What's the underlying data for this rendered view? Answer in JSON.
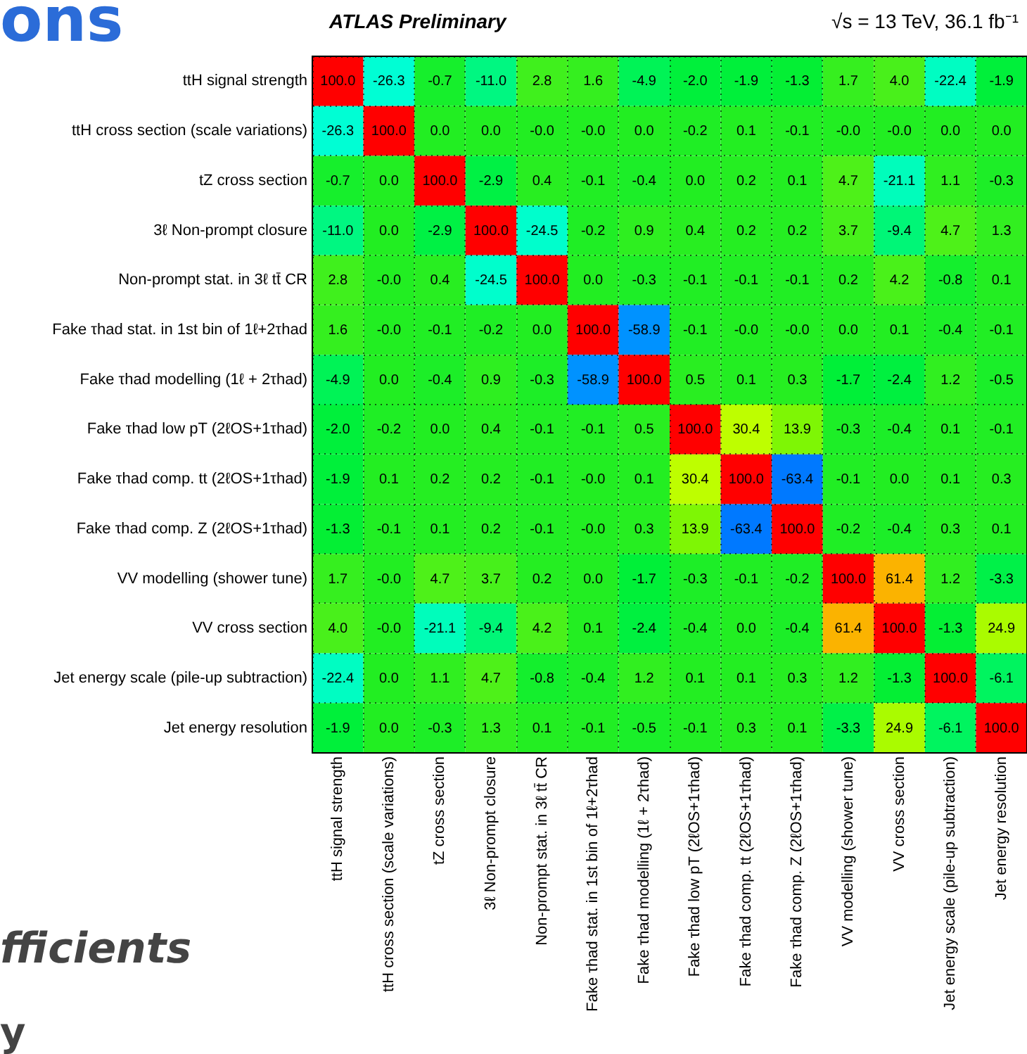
{
  "chart_data": {
    "type": "heatmap",
    "title": "ATLAS Preliminary",
    "subtitle": "√s = 13 TeV, 36.1 fb⁻¹",
    "annotations": [
      "ons",
      "fficients",
      "y"
    ],
    "categories": [
      "ttH signal strength",
      "ttH cross section (scale variations)",
      "tZ cross section",
      "3ℓ Non-prompt closure",
      "Non-prompt stat. in 3ℓ tt̄ CR",
      "Fake τhad stat. in 1st bin of 1ℓ+2τhad",
      "Fake τhad modelling (1ℓ + 2τhad)",
      "Fake τhad low pT (2ℓOS+1τhad)",
      "Fake τhad comp. tt (2ℓOS+1τhad)",
      "Fake τhad comp. Z (2ℓOS+1τhad)",
      "VV modelling (shower tune)",
      "VV cross section",
      "Jet energy scale (pile-up subtraction)",
      "Jet energy resolution"
    ],
    "y_categories": [
      "ttH signal strength",
      "ttH cross section (scale variations)",
      "tZ cross section",
      "3ℓ Non-prompt closure",
      "Non-prompt stat. in 3ℓ tt̄ CR",
      "Fake τhad stat. in 1st bin of 1ℓ+2τhad",
      "Fake τhad modelling (1ℓ + 2τhad)",
      "Fake τhad low pT (2ℓOS+1τhad)",
      "Fake τhad comp. tt (2ℓOS+1τhad)",
      "Fake τhad comp. Z (2ℓOS+1τhad)",
      "VV modelling (shower tune)",
      "VV cross section",
      "Jet energy scale (pile-up subtraction)",
      "Jet energy resolution"
    ],
    "cells": [
      [
        100,
        -26.3,
        -0.7,
        -11,
        2.8,
        1.6,
        -4.9,
        -2,
        -1.9,
        -1.3,
        1.7,
        4,
        -22.4,
        -1.9
      ],
      [
        -26.3,
        100,
        0,
        0,
        0,
        0,
        0,
        -0.2,
        0.1,
        -0.1,
        0,
        0,
        0,
        0
      ],
      [
        -0.7,
        0,
        100,
        -2.9,
        0.4,
        -0.1,
        -0.4,
        0,
        0.2,
        0.1,
        4.7,
        -21.1,
        1.1,
        -0.3
      ],
      [
        -11,
        0,
        -2.9,
        100,
        -24.5,
        -0.2,
        0.9,
        0.4,
        0.2,
        0.2,
        3.7,
        -9.4,
        4.7,
        1.3
      ],
      [
        2.8,
        0,
        0.4,
        -24.5,
        100,
        0,
        -0.3,
        -0.1,
        -0.1,
        -0.1,
        0.2,
        4.2,
        -0.8,
        0.1
      ],
      [
        1.6,
        0,
        -0.1,
        -0.2,
        0,
        100,
        -58.9,
        -0.1,
        0,
        0,
        0,
        0.1,
        -0.4,
        -0.1
      ],
      [
        -4.9,
        0,
        -0.4,
        0.9,
        -0.3,
        -58.9,
        100,
        0.5,
        0.1,
        0.3,
        -1.7,
        -2.4,
        1.2,
        -0.5
      ],
      [
        -2,
        -0.2,
        0,
        0.4,
        -0.1,
        -0.1,
        0.5,
        100,
        30.4,
        13.9,
        -0.3,
        -0.4,
        0.1,
        -0.1
      ],
      [
        -1.9,
        0.1,
        0.2,
        0.2,
        -0.1,
        0,
        0.1,
        30.4,
        100,
        -63.4,
        -0.1,
        0,
        0.1,
        0.3
      ],
      [
        -1.3,
        -0.1,
        0.1,
        0.2,
        -0.1,
        0,
        0.3,
        13.9,
        -63.4,
        100,
        -0.2,
        -0.4,
        0.3,
        0.1
      ],
      [
        1.7,
        0,
        4.7,
        3.7,
        0.2,
        0,
        -1.7,
        -0.3,
        -0.1,
        -0.2,
        100,
        61.4,
        1.2,
        -3.3
      ],
      [
        4,
        0,
        -21.1,
        -9.4,
        4.2,
        0.1,
        -2.4,
        -0.4,
        0,
        -0.4,
        61.4,
        100,
        -1.3,
        24.9
      ],
      [
        -22.4,
        0,
        1.1,
        4.7,
        -0.8,
        -0.4,
        1.2,
        0.1,
        0.1,
        0.3,
        1.2,
        -1.3,
        100,
        -6.1
      ],
      [
        -1.9,
        0,
        -0.3,
        1.3,
        0.1,
        -0.1,
        -0.5,
        -0.1,
        0.3,
        0.1,
        -3.3,
        24.9,
        -6.1,
        100
      ]
    ],
    "cell_labels": [
      [
        "100.0",
        "-26.3",
        "-0.7",
        "-11.0",
        "2.8",
        "1.6",
        "-4.9",
        "-2.0",
        "-1.9",
        "-1.3",
        "1.7",
        "4.0",
        "-22.4",
        "-1.9"
      ],
      [
        "-26.3",
        "100.0",
        "0.0",
        "0.0",
        "-0.0",
        "-0.0",
        "0.0",
        "-0.2",
        "0.1",
        "-0.1",
        "-0.0",
        "-0.0",
        "0.0",
        "0.0"
      ],
      [
        "-0.7",
        "0.0",
        "100.0",
        "-2.9",
        "0.4",
        "-0.1",
        "-0.4",
        "0.0",
        "0.2",
        "0.1",
        "4.7",
        "-21.1",
        "1.1",
        "-0.3"
      ],
      [
        "-11.0",
        "0.0",
        "-2.9",
        "100.0",
        "-24.5",
        "-0.2",
        "0.9",
        "0.4",
        "0.2",
        "0.2",
        "3.7",
        "-9.4",
        "4.7",
        "1.3"
      ],
      [
        "2.8",
        "-0.0",
        "0.4",
        "-24.5",
        "100.0",
        "0.0",
        "-0.3",
        "-0.1",
        "-0.1",
        "-0.1",
        "0.2",
        "4.2",
        "-0.8",
        "0.1"
      ],
      [
        "1.6",
        "-0.0",
        "-0.1",
        "-0.2",
        "0.0",
        "100.0",
        "-58.9",
        "-0.1",
        "-0.0",
        "-0.0",
        "0.0",
        "0.1",
        "-0.4",
        "-0.1"
      ],
      [
        "-4.9",
        "0.0",
        "-0.4",
        "0.9",
        "-0.3",
        "-58.9",
        "100.0",
        "0.5",
        "0.1",
        "0.3",
        "-1.7",
        "-2.4",
        "1.2",
        "-0.5"
      ],
      [
        "-2.0",
        "-0.2",
        "0.0",
        "0.4",
        "-0.1",
        "-0.1",
        "0.5",
        "100.0",
        "30.4",
        "13.9",
        "-0.3",
        "-0.4",
        "0.1",
        "-0.1"
      ],
      [
        "-1.9",
        "0.1",
        "0.2",
        "0.2",
        "-0.1",
        "-0.0",
        "0.1",
        "30.4",
        "100.0",
        "-63.4",
        "-0.1",
        "0.0",
        "0.1",
        "0.3"
      ],
      [
        "-1.3",
        "-0.1",
        "0.1",
        "0.2",
        "-0.1",
        "-0.0",
        "0.3",
        "13.9",
        "-63.4",
        "100.0",
        "-0.2",
        "-0.4",
        "0.3",
        "0.1"
      ],
      [
        "1.7",
        "-0.0",
        "4.7",
        "3.7",
        "0.2",
        "0.0",
        "-1.7",
        "-0.3",
        "-0.1",
        "-0.2",
        "100.0",
        "61.4",
        "1.2",
        "-3.3"
      ],
      [
        "4.0",
        "-0.0",
        "-21.1",
        "-9.4",
        "4.2",
        "0.1",
        "-2.4",
        "-0.4",
        "0.0",
        "-0.4",
        "61.4",
        "100.0",
        "-1.3",
        "24.9"
      ],
      [
        "-22.4",
        "0.0",
        "1.1",
        "4.7",
        "-0.8",
        "-0.4",
        "1.2",
        "0.1",
        "0.1",
        "0.3",
        "1.2",
        "-1.3",
        "100.0",
        "-6.1"
      ],
      [
        "-1.9",
        "0.0",
        "-0.3",
        "1.3",
        "0.1",
        "-0.1",
        "-0.5",
        "-0.1",
        "0.3",
        "0.1",
        "-3.3",
        "24.9",
        "-6.1",
        "100.0"
      ]
    ],
    "grid": true
  }
}
